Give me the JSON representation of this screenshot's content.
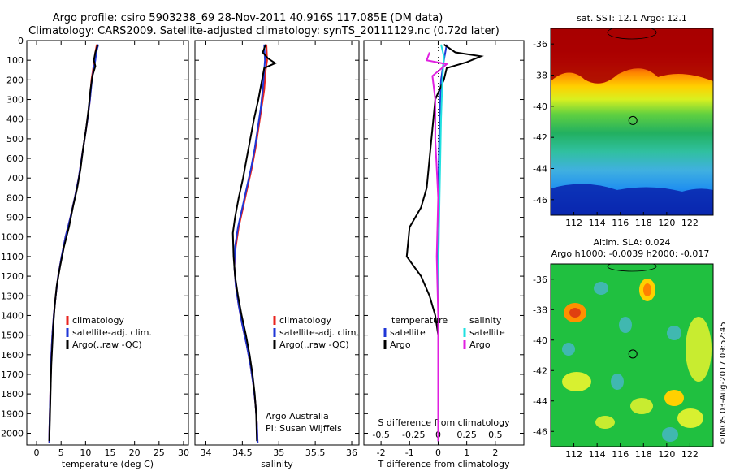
{
  "header": {
    "line1": "Argo profile: csiro 5903238_69 28-Nov-2011 40.916S 117.085E (DM data)",
    "line2": "Climatology: CARS2009. Satellite-adjusted climatology: synTS_20111129.nc (0.72d later)"
  },
  "credit": {
    "line1": "Argo Australia",
    "line2": "PI: Susan Wijffels",
    "stamp": "©IMOS 03-Aug-2017 09:52:45"
  },
  "colors": {
    "climatology": "#e8231e",
    "satellite": "#1f36d6",
    "argo": "#000000",
    "salinity_satellite": "#20e0e0",
    "salinity_argo": "#e020e0"
  },
  "chart_data": [
    {
      "type": "line",
      "id": "temperature",
      "xlabel": "temperature (deg C)",
      "ylabel": "",
      "xlim": [
        -2,
        31
      ],
      "ylim": [
        2060,
        0
      ],
      "xticks": [
        "0",
        "5",
        "10",
        "15",
        "20",
        "25",
        "30"
      ],
      "yticks": [
        "0",
        "100",
        "200",
        "300",
        "400",
        "500",
        "600",
        "700",
        "800",
        "900",
        "1000",
        "1100",
        "1200",
        "1300",
        "1400",
        "1500",
        "1600",
        "1700",
        "1800",
        "1900",
        "2000"
      ],
      "legend": [
        "climatology",
        "satellite-adj. clim.",
        "Argo(..raw -QC)"
      ],
      "series": [
        {
          "name": "climatology",
          "color": "climatology",
          "points": [
            [
              12.3,
              20
            ],
            [
              12.0,
              60
            ],
            [
              11.8,
              100
            ],
            [
              11.5,
              150
            ],
            [
              11.2,
              200
            ],
            [
              10.9,
              300
            ],
            [
              10.4,
              400
            ],
            [
              9.8,
              500
            ],
            [
              9.2,
              600
            ],
            [
              8.6,
              700
            ],
            [
              7.8,
              800
            ],
            [
              6.9,
              900
            ],
            [
              5.9,
              1000
            ],
            [
              5.1,
              1100
            ],
            [
              4.4,
              1200
            ],
            [
              3.9,
              1300
            ],
            [
              3.5,
              1400
            ],
            [
              3.2,
              1500
            ],
            [
              3.0,
              1600
            ],
            [
              2.9,
              1700
            ],
            [
              2.8,
              1800
            ],
            [
              2.7,
              1900
            ],
            [
              2.6,
              2000
            ],
            [
              2.6,
              2050
            ]
          ]
        },
        {
          "name": "satellite-adj. clim.",
          "color": "satellite",
          "points": [
            [
              12.6,
              20
            ],
            [
              12.2,
              60
            ],
            [
              12.0,
              100
            ],
            [
              11.6,
              150
            ],
            [
              11.3,
              200
            ],
            [
              10.9,
              300
            ],
            [
              10.4,
              400
            ],
            [
              9.8,
              500
            ],
            [
              9.2,
              600
            ],
            [
              8.6,
              700
            ],
            [
              7.8,
              800
            ],
            [
              6.9,
              900
            ],
            [
              5.9,
              1000
            ],
            [
              5.1,
              1100
            ],
            [
              4.4,
              1200
            ],
            [
              3.9,
              1300
            ],
            [
              3.5,
              1400
            ],
            [
              3.2,
              1500
            ],
            [
              3.0,
              1600
            ],
            [
              2.9,
              1700
            ],
            [
              2.8,
              1800
            ],
            [
              2.7,
              1900
            ],
            [
              2.6,
              2000
            ],
            [
              2.6,
              2050
            ]
          ]
        },
        {
          "name": "Argo(..raw -QC)",
          "color": "argo",
          "points": [
            [
              12.5,
              20
            ],
            [
              12.0,
              60
            ],
            [
              11.7,
              100
            ],
            [
              12.0,
              130
            ],
            [
              11.4,
              180
            ],
            [
              11.0,
              250
            ],
            [
              10.6,
              350
            ],
            [
              10.1,
              450
            ],
            [
              9.5,
              550
            ],
            [
              9.0,
              650
            ],
            [
              8.3,
              750
            ],
            [
              7.4,
              850
            ],
            [
              6.6,
              950
            ],
            [
              5.6,
              1050
            ],
            [
              4.8,
              1150
            ],
            [
              4.1,
              1250
            ],
            [
              3.7,
              1350
            ],
            [
              3.4,
              1450
            ],
            [
              3.2,
              1550
            ],
            [
              3.0,
              1650
            ],
            [
              2.9,
              1750
            ],
            [
              2.8,
              1850
            ],
            [
              2.7,
              1950
            ],
            [
              2.6,
              2040
            ]
          ]
        }
      ]
    },
    {
      "type": "line",
      "id": "salinity",
      "xlabel": "salinity",
      "xlim": [
        33.85,
        36.1
      ],
      "ylim": [
        2060,
        0
      ],
      "xticks": [
        "34",
        "34.5",
        "35",
        "35.5",
        "36"
      ],
      "legend": [
        "climatology",
        "satellite-adj. clim.",
        "Argo(..raw -QC)"
      ],
      "series": [
        {
          "name": "climatology",
          "color": "climatology",
          "points": [
            [
              34.83,
              20
            ],
            [
              34.84,
              100
            ],
            [
              34.82,
              150
            ],
            [
              34.8,
              250
            ],
            [
              34.76,
              350
            ],
            [
              34.72,
              450
            ],
            [
              34.68,
              550
            ],
            [
              34.63,
              650
            ],
            [
              34.57,
              750
            ],
            [
              34.51,
              850
            ],
            [
              34.45,
              950
            ],
            [
              34.41,
              1050
            ],
            [
              34.39,
              1150
            ],
            [
              34.41,
              1250
            ],
            [
              34.45,
              1350
            ],
            [
              34.5,
              1450
            ],
            [
              34.56,
              1550
            ],
            [
              34.61,
              1650
            ],
            [
              34.65,
              1750
            ],
            [
              34.68,
              1850
            ],
            [
              34.7,
              1950
            ],
            [
              34.71,
              2050
            ]
          ]
        },
        {
          "name": "satellite-adj. clim.",
          "color": "satellite",
          "points": [
            [
              34.8,
              20
            ],
            [
              34.81,
              100
            ],
            [
              34.8,
              150
            ],
            [
              34.78,
              250
            ],
            [
              34.75,
              350
            ],
            [
              34.71,
              450
            ],
            [
              34.67,
              550
            ],
            [
              34.62,
              650
            ],
            [
              34.56,
              750
            ],
            [
              34.5,
              850
            ],
            [
              34.44,
              950
            ],
            [
              34.4,
              1050
            ],
            [
              34.39,
              1150
            ],
            [
              34.41,
              1250
            ],
            [
              34.45,
              1350
            ],
            [
              34.5,
              1450
            ],
            [
              34.56,
              1550
            ],
            [
              34.61,
              1650
            ],
            [
              34.65,
              1750
            ],
            [
              34.68,
              1850
            ],
            [
              34.7,
              1950
            ],
            [
              34.71,
              2050
            ]
          ]
        },
        {
          "name": "Argo(..raw -QC)",
          "color": "argo",
          "points": [
            [
              34.82,
              20
            ],
            [
              34.78,
              60
            ],
            [
              34.85,
              90
            ],
            [
              34.95,
              115
            ],
            [
              34.8,
              140
            ],
            [
              34.77,
              200
            ],
            [
              34.72,
              300
            ],
            [
              34.66,
              400
            ],
            [
              34.61,
              500
            ],
            [
              34.56,
              600
            ],
            [
              34.51,
              700
            ],
            [
              34.45,
              800
            ],
            [
              34.4,
              900
            ],
            [
              34.37,
              980
            ],
            [
              34.38,
              1100
            ],
            [
              34.4,
              1200
            ],
            [
              34.44,
              1300
            ],
            [
              34.49,
              1400
            ],
            [
              34.55,
              1500
            ],
            [
              34.6,
              1600
            ],
            [
              34.64,
              1700
            ],
            [
              34.67,
              1800
            ],
            [
              34.69,
              1900
            ],
            [
              34.7,
              2040
            ]
          ]
        }
      ]
    },
    {
      "type": "line",
      "id": "difference",
      "xlabel": "T difference from climatology",
      "xlabel_top": "S difference from climatology",
      "xlim": [
        -2.6,
        3.0
      ],
      "ylim": [
        2060,
        0
      ],
      "xticks": [
        "-2",
        "-1",
        "0",
        "1",
        "2"
      ],
      "xticks_s": [
        "-0.5",
        "-0.25",
        "0",
        "0.25",
        "0.5"
      ],
      "legend_groups": [
        {
          "title": "temperature",
          "items": [
            "satellite",
            "Argo"
          ]
        },
        {
          "title": "salinity",
          "items": [
            "satellite",
            "Argo"
          ]
        }
      ],
      "series": [
        {
          "name": "T satellite",
          "color": "satellite",
          "points": [
            [
              0.3,
              20
            ],
            [
              0.2,
              100
            ],
            [
              0.1,
              200
            ],
            [
              0.05,
              400
            ],
            [
              0.0,
              800
            ],
            [
              0.0,
              1400
            ],
            [
              0.0,
              2040
            ]
          ]
        },
        {
          "name": "T Argo",
          "color": "argo",
          "points": [
            [
              0.2,
              20
            ],
            [
              0.6,
              60
            ],
            [
              1.5,
              80
            ],
            [
              1.0,
              110
            ],
            [
              0.3,
              140
            ],
            [
              0.2,
              200
            ],
            [
              -0.1,
              300
            ],
            [
              -0.2,
              450
            ],
            [
              -0.3,
              600
            ],
            [
              -0.4,
              750
            ],
            [
              -0.6,
              850
            ],
            [
              -1.0,
              950
            ],
            [
              -1.1,
              1100
            ],
            [
              -0.6,
              1200
            ],
            [
              -0.3,
              1300
            ],
            [
              -0.1,
              1400
            ],
            [
              0.0,
              1500
            ],
            [
              0.0,
              2040
            ]
          ]
        },
        {
          "name": "S satellite",
          "color": "salinity_satellite",
          "points": [
            [
              0.1,
              20
            ],
            [
              0.2,
              80
            ],
            [
              0.15,
              200
            ],
            [
              0.1,
              400
            ],
            [
              0.05,
              800
            ],
            [
              0.0,
              1200
            ],
            [
              0.0,
              2040
            ]
          ]
        },
        {
          "name": "S Argo",
          "color": "salinity_argo",
          "points": [
            [
              -0.3,
              60
            ],
            [
              -0.4,
              100
            ],
            [
              0.3,
              120
            ],
            [
              -0.2,
              180
            ],
            [
              -0.1,
              300
            ],
            [
              -0.1,
              500
            ],
            [
              0.0,
              800
            ],
            [
              -0.05,
              1100
            ],
            [
              0.0,
              1400
            ],
            [
              0.0,
              2040
            ]
          ]
        }
      ]
    },
    {
      "type": "heatmap",
      "id": "sst-map",
      "title": "sat. SST: 12.1  Argo: 12.1",
      "xlim": [
        110,
        124
      ],
      "ylim": [
        -47,
        -35
      ],
      "xticks": [
        "112",
        "114",
        "116",
        "118",
        "120",
        "122"
      ],
      "yticks": [
        "-36",
        "-38",
        "-40",
        "-42",
        "-44",
        "-46"
      ],
      "marker": [
        117.085,
        -40.916
      ]
    },
    {
      "type": "heatmap",
      "id": "sla-map",
      "title": "Altim. SLA: 0.024",
      "subtitle": "Argo h1000: -0.0039 h2000: -0.017",
      "xlim": [
        110,
        124
      ],
      "ylim": [
        -47,
        -35
      ],
      "xticks": [
        "112",
        "114",
        "116",
        "118",
        "120",
        "122"
      ],
      "yticks": [
        "-36",
        "-38",
        "-40",
        "-42",
        "-44",
        "-46"
      ],
      "marker": [
        117.085,
        -40.916
      ]
    }
  ]
}
